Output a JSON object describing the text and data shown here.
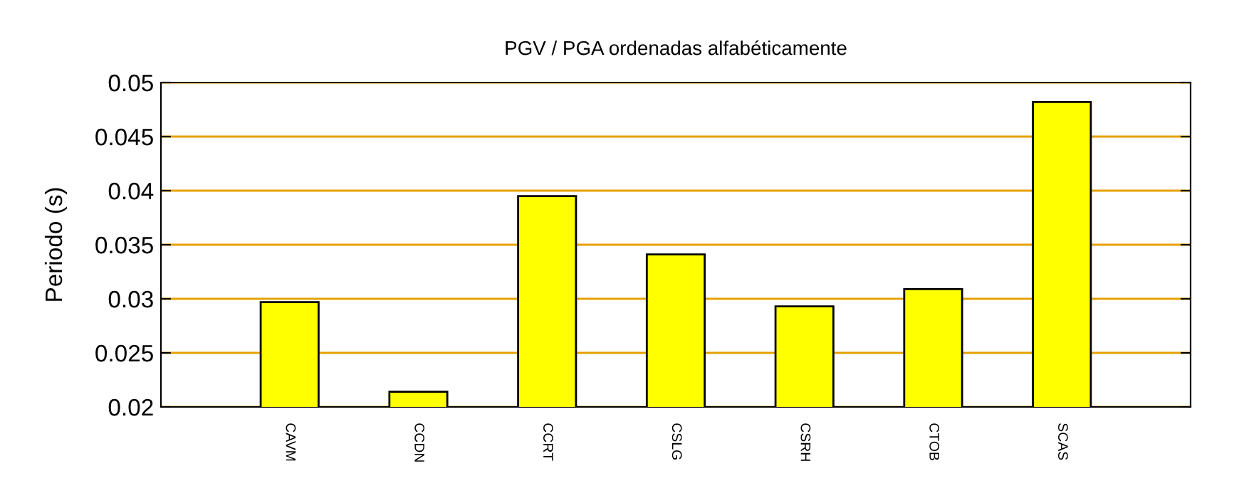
{
  "chart_data": {
    "type": "bar",
    "title": "PGV / PGA ordenadas alfabéticamente",
    "ylabel": "Periodo (s)",
    "categories": [
      "CAVM",
      "CCDN",
      "CCRT",
      "CSLG",
      "CSRH",
      "CTOB",
      "SCAS"
    ],
    "values": [
      0.0297,
      0.0214,
      0.0395,
      0.0341,
      0.0293,
      0.0309,
      0.0482
    ],
    "color": "#ffff00",
    "ylim": [
      0.02,
      0.05
    ],
    "yticks": [
      0.02,
      0.025,
      0.03,
      0.035,
      0.04,
      0.045,
      0.05
    ],
    "grid": "y"
  }
}
